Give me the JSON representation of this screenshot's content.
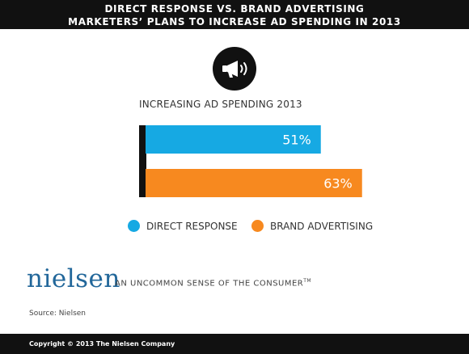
{
  "header": {
    "line1": "DIRECT RESPONSE VS. BRAND ADVERTISING",
    "line2": "MARKETERS’ PLANS TO INCREASE AD SPENDING IN 2013"
  },
  "icon": "megaphone-icon",
  "chart_data": {
    "type": "bar",
    "orientation": "horizontal",
    "title": "INCREASING AD SPENDING 2013",
    "categories": [
      "DIRECT RESPONSE",
      "BRAND ADVERTISING"
    ],
    "values": [
      51,
      63
    ],
    "value_labels": [
      "51%",
      "63%"
    ],
    "colors": [
      "#16a9e3",
      "#f7891f"
    ],
    "xlim": [
      0,
      100
    ],
    "grid": false,
    "legend": "bottom"
  },
  "legend": {
    "items": [
      {
        "label": "DIRECT RESPONSE",
        "color": "#16a9e3"
      },
      {
        "label": "BRAND ADVERTISING",
        "color": "#f7891f"
      }
    ]
  },
  "brand": {
    "logo": "nielsen",
    "tagline": "AN UNCOMMON SENSE OF THE CONSUMER",
    "tagline_mark": "TM"
  },
  "source": "Source: Nielsen",
  "footer": "Copyright © 2013 The Nielsen Company"
}
